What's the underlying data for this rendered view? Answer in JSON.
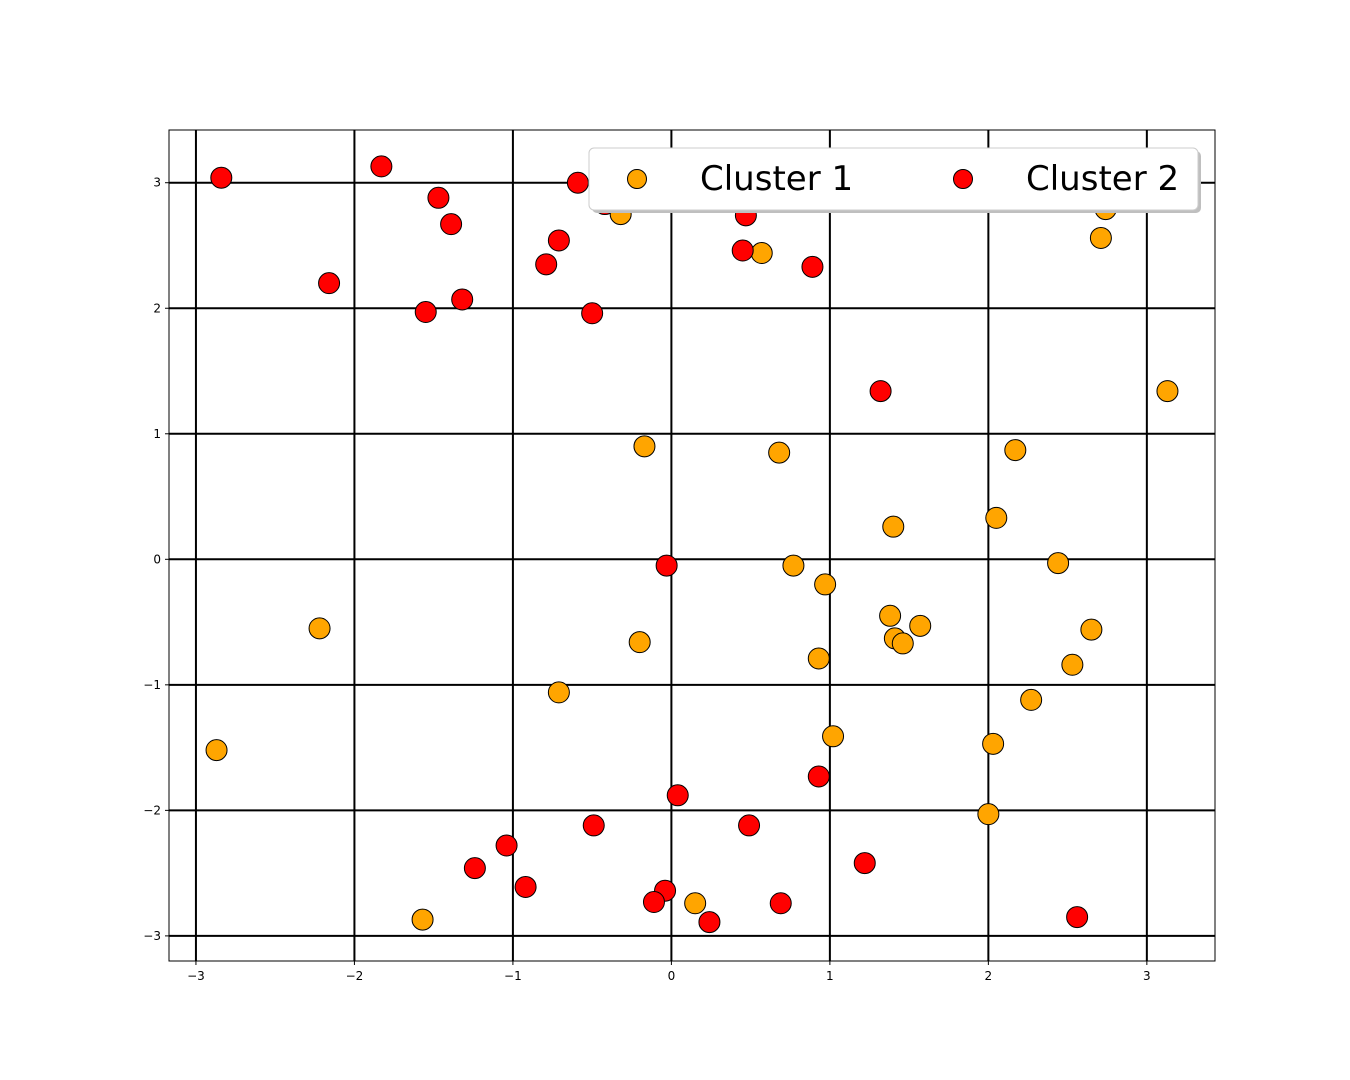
{
  "chart_data": {
    "type": "scatter",
    "title": "",
    "xlabel": "",
    "ylabel": "",
    "xlim": [
      -3.17,
      3.43
    ],
    "ylim": [
      -3.2,
      3.42
    ],
    "xticks": [
      -3,
      -2,
      -1,
      0,
      1,
      2,
      3
    ],
    "yticks": [
      -3,
      -2,
      -1,
      0,
      1,
      2,
      3
    ],
    "xtick_labels": [
      "−3",
      "−2",
      "−1",
      "0",
      "1",
      "2",
      "3"
    ],
    "ytick_labels": [
      "−3",
      "−2",
      "−1",
      "0",
      "1",
      "2",
      "3"
    ],
    "grid": true,
    "legend": {
      "position": "top-right",
      "columns": 2
    },
    "series": [
      {
        "name": "Cluster 1",
        "color": "#FFA500",
        "points": [
          [
            -0.32,
            2.75
          ],
          [
            0.57,
            2.44
          ],
          [
            2.74,
            2.79
          ],
          [
            2.71,
            2.56
          ],
          [
            3.13,
            1.34
          ],
          [
            -0.17,
            0.9
          ],
          [
            0.68,
            0.85
          ],
          [
            2.17,
            0.87
          ],
          [
            1.4,
            0.26
          ],
          [
            2.05,
            0.33
          ],
          [
            0.77,
            -0.05
          ],
          [
            0.97,
            -0.2
          ],
          [
            2.44,
            -0.03
          ],
          [
            -2.22,
            -0.55
          ],
          [
            -0.2,
            -0.66
          ],
          [
            1.38,
            -0.45
          ],
          [
            1.41,
            -0.63
          ],
          [
            1.46,
            -0.67
          ],
          [
            1.57,
            -0.53
          ],
          [
            2.65,
            -0.56
          ],
          [
            0.93,
            -0.79
          ],
          [
            2.53,
            -0.84
          ],
          [
            -0.71,
            -1.06
          ],
          [
            2.27,
            -1.12
          ],
          [
            1.02,
            -1.41
          ],
          [
            2.03,
            -1.47
          ],
          [
            -2.87,
            -1.52
          ],
          [
            2.0,
            -2.03
          ],
          [
            0.15,
            -2.74
          ],
          [
            -1.57,
            -2.87
          ]
        ]
      },
      {
        "name": "Cluster 2",
        "color": "#FF0000",
        "points": [
          [
            -2.84,
            3.04
          ],
          [
            -1.83,
            3.13
          ],
          [
            -0.59,
            3.0
          ],
          [
            -1.47,
            2.88
          ],
          [
            -1.39,
            2.67
          ],
          [
            -0.42,
            2.83
          ],
          [
            0.47,
            2.74
          ],
          [
            -0.71,
            2.54
          ],
          [
            -0.79,
            2.35
          ],
          [
            0.45,
            2.46
          ],
          [
            0.89,
            2.33
          ],
          [
            -2.16,
            2.2
          ],
          [
            -1.32,
            2.07
          ],
          [
            -1.55,
            1.97
          ],
          [
            -0.5,
            1.96
          ],
          [
            1.32,
            1.34
          ],
          [
            -0.03,
            -0.05
          ],
          [
            0.93,
            -1.73
          ],
          [
            0.04,
            -1.88
          ],
          [
            -0.49,
            -2.12
          ],
          [
            0.49,
            -2.12
          ],
          [
            -1.04,
            -2.28
          ],
          [
            -1.24,
            -2.46
          ],
          [
            1.22,
            -2.42
          ],
          [
            -0.92,
            -2.61
          ],
          [
            -0.04,
            -2.64
          ],
          [
            -0.11,
            -2.73
          ],
          [
            0.69,
            -2.74
          ],
          [
            0.24,
            -2.89
          ],
          [
            2.56,
            -2.85
          ]
        ]
      }
    ]
  }
}
